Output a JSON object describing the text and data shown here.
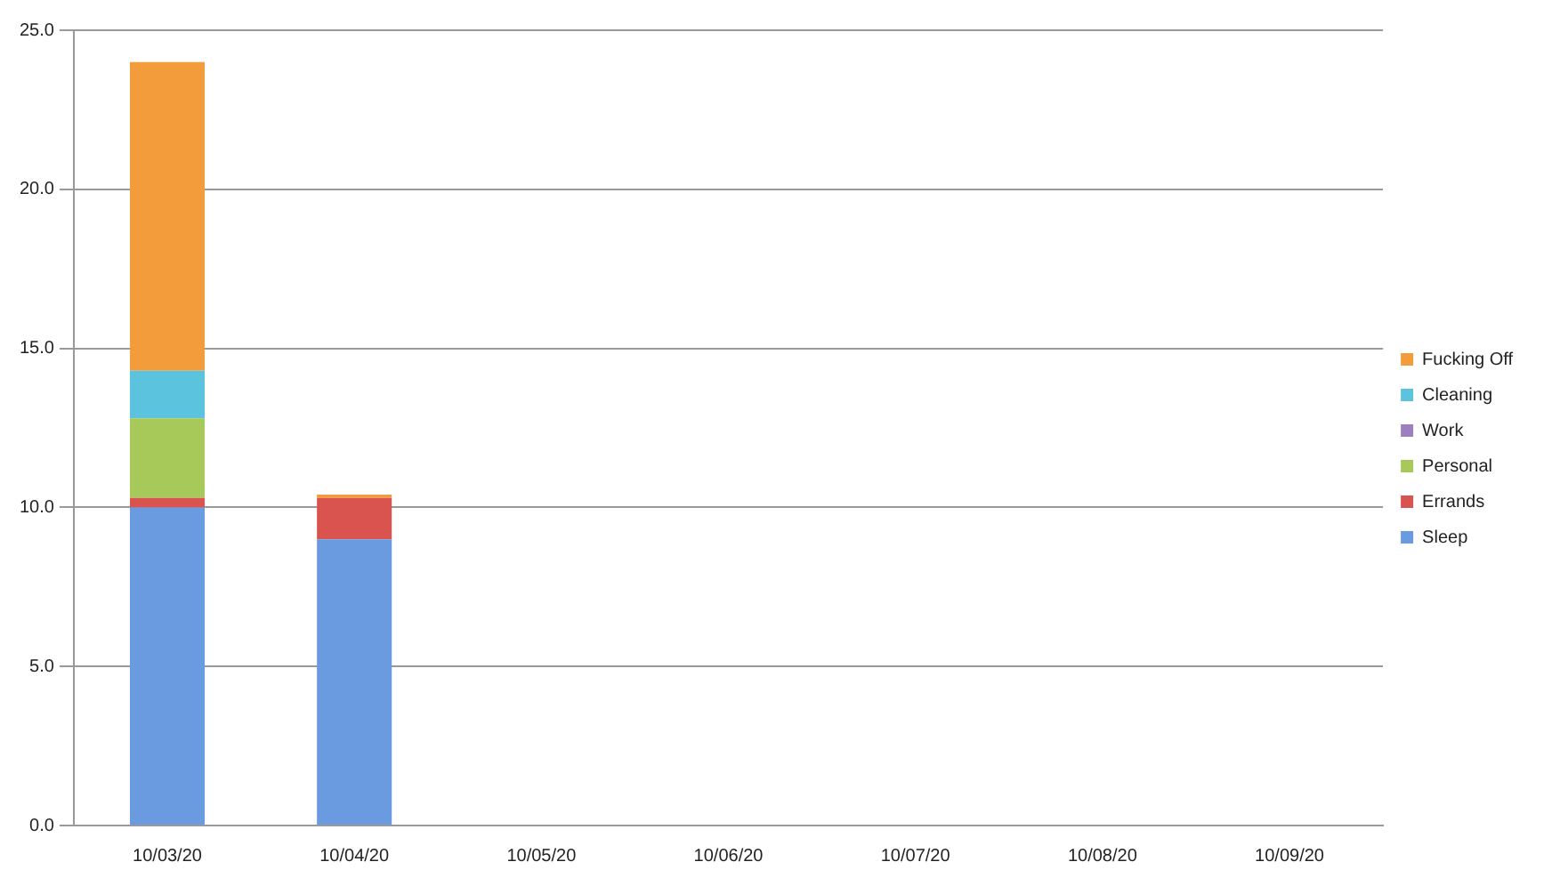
{
  "chart_data": {
    "type": "bar",
    "stacked": true,
    "categories": [
      "10/03/20",
      "10/04/20",
      "10/05/20",
      "10/06/20",
      "10/07/20",
      "10/08/20",
      "10/09/20"
    ],
    "series": [
      {
        "name": "Sleep",
        "color": "#6a9ae0",
        "values": [
          10,
          9,
          null,
          null,
          null,
          null,
          null
        ]
      },
      {
        "name": "Errands",
        "color": "#d9534f",
        "values": [
          0.3,
          1.3,
          null,
          null,
          null,
          null,
          null
        ]
      },
      {
        "name": "Personal",
        "color": "#a6c95a",
        "values": [
          2.5,
          0,
          null,
          null,
          null,
          null,
          null
        ]
      },
      {
        "name": "Work",
        "color": "#9d7fc0",
        "values": [
          0,
          0,
          null,
          null,
          null,
          null,
          null
        ]
      },
      {
        "name": "Cleaning",
        "color": "#5bc3de",
        "values": [
          1.5,
          0,
          null,
          null,
          null,
          null,
          null
        ]
      },
      {
        "name": "Fucking Off",
        "color": "#f39c3c",
        "values": [
          9.7,
          0.1,
          null,
          null,
          null,
          null,
          null
        ]
      }
    ],
    "ylim": [
      0,
      25
    ],
    "yticks": [
      {
        "value": 0,
        "label": "0.0"
      },
      {
        "value": 5,
        "label": "5.0"
      },
      {
        "value": 10,
        "label": "10.0"
      },
      {
        "value": 15,
        "label": "15.0"
      },
      {
        "value": 20,
        "label": "20.0"
      },
      {
        "value": 25,
        "label": "25.0"
      }
    ],
    "grid": "y",
    "legend": "right"
  }
}
